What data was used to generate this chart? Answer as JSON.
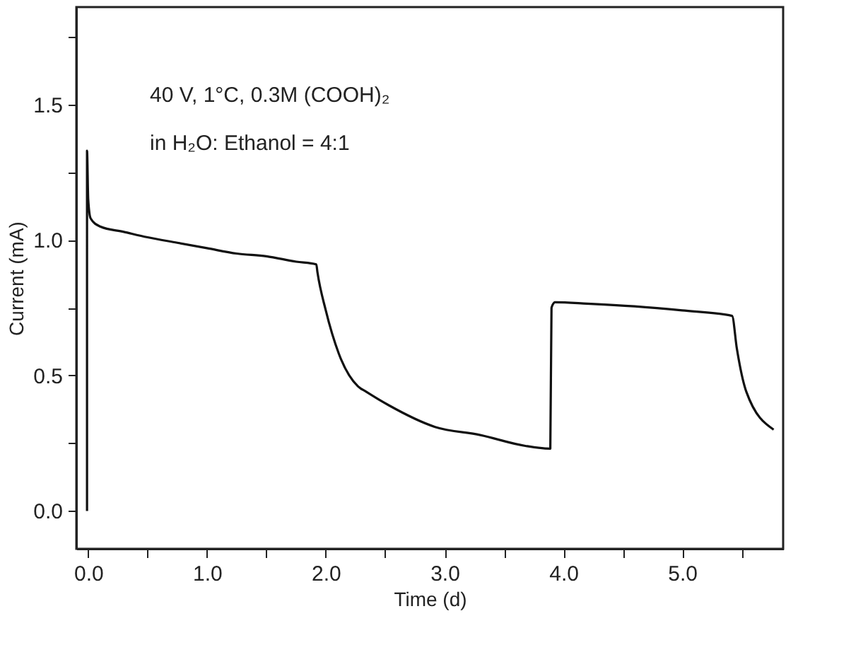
{
  "chart_data": {
    "type": "line",
    "xlabel": "Time (d)",
    "ylabel": "Current (mA)",
    "annotations": [
      "40 V, 1°C, 0.3M (COOH)₂",
      "in H₂O: Ethanol = 4:1"
    ],
    "xlim": [
      -0.1,
      5.85
    ],
    "ylim": [
      -0.14,
      1.86
    ],
    "xticks": [
      {
        "value": 0,
        "label": "0.0"
      },
      {
        "value": 0.5,
        "label": null
      },
      {
        "value": 1,
        "label": "1.0"
      },
      {
        "value": 1.5,
        "label": null
      },
      {
        "value": 2,
        "label": "2.0"
      },
      {
        "value": 2.5,
        "label": null
      },
      {
        "value": 3,
        "label": "3.0"
      },
      {
        "value": 3.5,
        "label": null
      },
      {
        "value": 4,
        "label": "4.0"
      },
      {
        "value": 4.5,
        "label": null
      },
      {
        "value": 5,
        "label": "5.0"
      },
      {
        "value": 5.5,
        "label": null
      }
    ],
    "yticks": [
      {
        "value": 0,
        "label": "0.0"
      },
      {
        "value": 0.25,
        "label": null
      },
      {
        "value": 0.5,
        "label": "0.5"
      },
      {
        "value": 0.75,
        "label": null
      },
      {
        "value": 1,
        "label": "1.0"
      },
      {
        "value": 1.25,
        "label": null
      },
      {
        "value": 1.5,
        "label": "1.5"
      },
      {
        "value": 1.75,
        "label": null
      }
    ],
    "grid": false,
    "series": [
      {
        "color": "#111111",
        "x": [
          -0.01,
          -0.01,
          0.0,
          0.02,
          0.1,
          0.3,
          0.5,
          0.75,
          1.0,
          1.25,
          1.5,
          1.75,
          1.92,
          1.93,
          2.0,
          2.11,
          2.27,
          2.34,
          2.53,
          2.92,
          3.3,
          3.68,
          3.89,
          3.9,
          3.93,
          4.2,
          4.6,
          5.0,
          5.42,
          5.46,
          5.54,
          5.77
        ],
        "values": [
          0.0,
          1.33,
          1.15,
          1.08,
          1.05,
          1.03,
          1.01,
          0.99,
          0.97,
          0.95,
          0.94,
          0.92,
          0.91,
          0.88,
          0.74,
          0.58,
          0.46,
          0.44,
          0.39,
          0.31,
          0.28,
          0.24,
          0.23,
          0.75,
          0.77,
          0.765,
          0.755,
          0.74,
          0.72,
          0.6,
          0.44,
          0.3
        ]
      }
    ]
  }
}
